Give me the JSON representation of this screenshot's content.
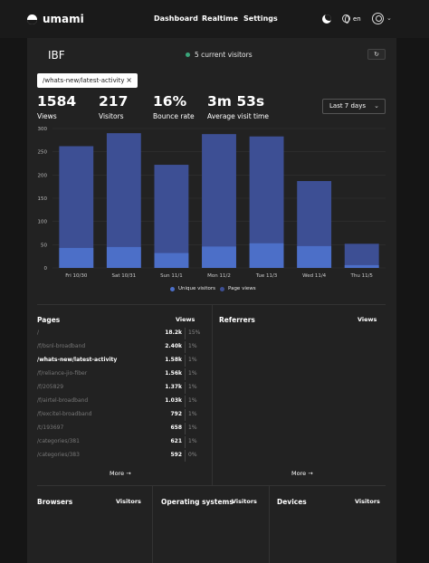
{
  "app": {
    "name": "umami"
  },
  "nav": {
    "dashboard": "Dashboard",
    "realtime": "Realtime",
    "settings": "Settings"
  },
  "header": {
    "language": "en"
  },
  "site": {
    "title": "IBF",
    "live_visitors": "5 current visitors"
  },
  "filter": {
    "url": "/whats-new/latest-activity",
    "close": "×"
  },
  "metrics": [
    {
      "value": "1584",
      "label": "Views"
    },
    {
      "value": "217",
      "label": "Visitors"
    },
    {
      "value": "16%",
      "label": "Bounce rate"
    },
    {
      "value": "3m 53s",
      "label": "Average visit time"
    }
  ],
  "date_range": {
    "selected": "Last 7 days"
  },
  "colors": {
    "page_views": "#3d4f94",
    "unique_visitors": "#4c6fc8",
    "accent_live": "#3aa57a"
  },
  "chart_data": {
    "type": "bar",
    "categories": [
      "Fri 10/30",
      "Sat 10/31",
      "Sun 11/1",
      "Mon 11/2",
      "Tue 11/3",
      "Wed 11/4",
      "Thu 11/5"
    ],
    "series": [
      {
        "name": "Page views",
        "values": [
          262,
          290,
          222,
          288,
          283,
          187,
          52
        ]
      },
      {
        "name": "Unique visitors",
        "values": [
          43,
          45,
          32,
          46,
          53,
          47,
          6
        ]
      }
    ],
    "ylim": [
      0,
      300
    ],
    "yticks": [
      0,
      50,
      100,
      150,
      200,
      250,
      300
    ],
    "legend": [
      "Unique visitors",
      "Page views"
    ],
    "stacked": false
  },
  "pages": {
    "title": "Pages",
    "column": "Views",
    "rows": [
      {
        "path": "/",
        "views": "18.2k",
        "pct": "15%"
      },
      {
        "path": "/f/bsnl-broadband",
        "views": "2.40k",
        "pct": "1%"
      },
      {
        "path": "/whats-new/latest-activity",
        "views": "1.58k",
        "pct": "1%"
      },
      {
        "path": "/f/reliance-jio-fiber",
        "views": "1.56k",
        "pct": "1%"
      },
      {
        "path": "/f/205829",
        "views": "1.37k",
        "pct": "1%"
      },
      {
        "path": "/f/airtel-broadband",
        "views": "1.03k",
        "pct": "1%"
      },
      {
        "path": "/f/excitel-broadband",
        "views": "792",
        "pct": "1%"
      },
      {
        "path": "/t/193697",
        "views": "658",
        "pct": "1%"
      },
      {
        "path": "/categories/381",
        "views": "621",
        "pct": "1%"
      },
      {
        "path": "/categories/383",
        "views": "592",
        "pct": "0%"
      }
    ],
    "more": "More"
  },
  "referrers": {
    "title": "Referrers",
    "column": "Views",
    "more": "More"
  },
  "browsers": {
    "title": "Browsers",
    "column": "Visitors"
  },
  "os": {
    "title": "Operating systems",
    "column": "Visitors"
  },
  "devices": {
    "title": "Devices",
    "column": "Visitors"
  }
}
